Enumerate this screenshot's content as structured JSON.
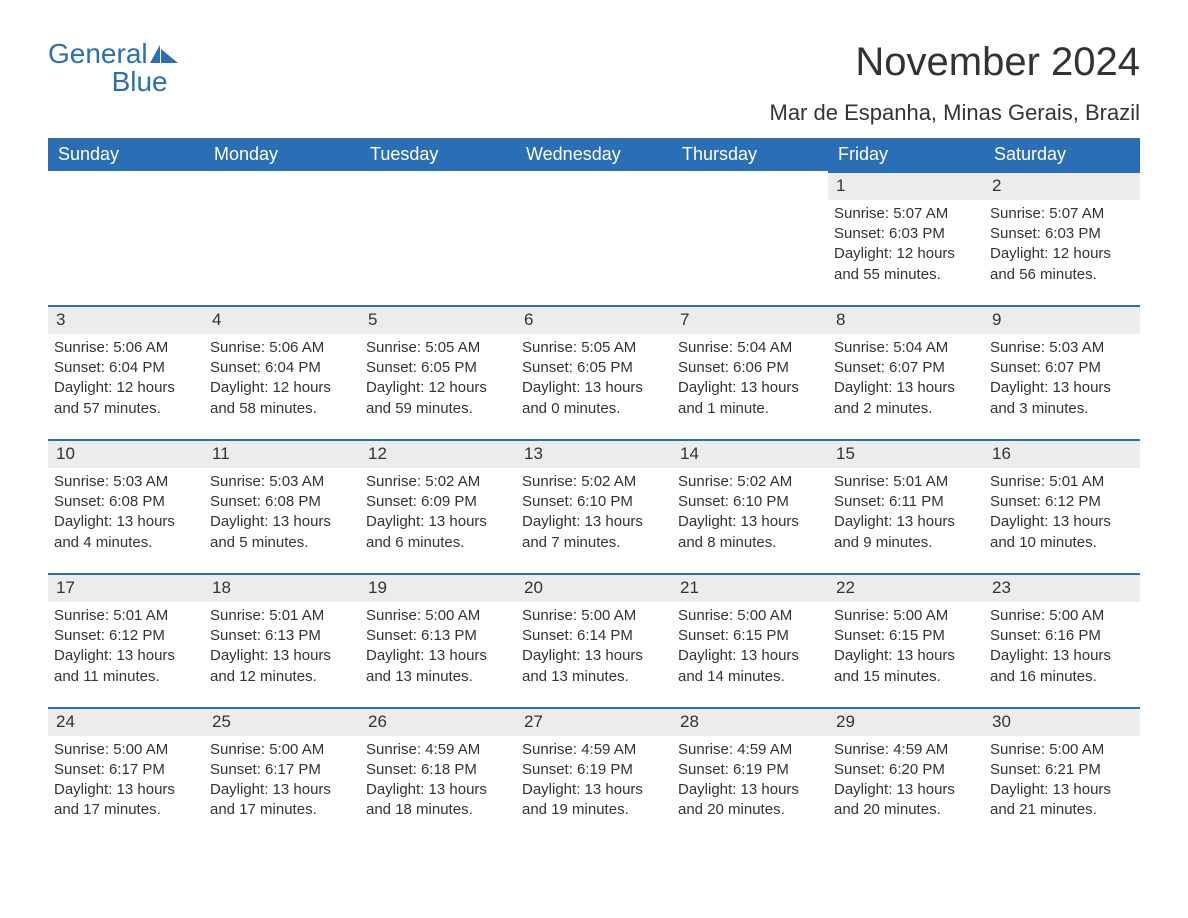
{
  "logo": {
    "text1": "General",
    "text2": "Blue"
  },
  "title": "November 2024",
  "location": "Mar de Espanha, Minas Gerais, Brazil",
  "colors": {
    "headerBg": "#2a6eb6",
    "headerText": "#ffffff",
    "dayBarBg": "#ececec",
    "dayBarBorder": "#2a6eb6",
    "bodyText": "#333333",
    "pageBg": "#ffffff"
  },
  "typography": {
    "title_fontsize": 40,
    "location_fontsize": 22,
    "weekday_fontsize": 18,
    "daynum_fontsize": 17,
    "body_fontsize": 15
  },
  "weekdays": [
    "Sunday",
    "Monday",
    "Tuesday",
    "Wednesday",
    "Thursday",
    "Friday",
    "Saturday"
  ],
  "weeks": [
    [
      {
        "day": "",
        "sunrise": "",
        "sunset": "",
        "daylight": "",
        "empty": true
      },
      {
        "day": "",
        "sunrise": "",
        "sunset": "",
        "daylight": "",
        "empty": true
      },
      {
        "day": "",
        "sunrise": "",
        "sunset": "",
        "daylight": "",
        "empty": true
      },
      {
        "day": "",
        "sunrise": "",
        "sunset": "",
        "daylight": "",
        "empty": true
      },
      {
        "day": "",
        "sunrise": "",
        "sunset": "",
        "daylight": "",
        "empty": true
      },
      {
        "day": "1",
        "sunrise": "Sunrise: 5:07 AM",
        "sunset": "Sunset: 6:03 PM",
        "daylight": "Daylight: 12 hours and 55 minutes."
      },
      {
        "day": "2",
        "sunrise": "Sunrise: 5:07 AM",
        "sunset": "Sunset: 6:03 PM",
        "daylight": "Daylight: 12 hours and 56 minutes."
      }
    ],
    [
      {
        "day": "3",
        "sunrise": "Sunrise: 5:06 AM",
        "sunset": "Sunset: 6:04 PM",
        "daylight": "Daylight: 12 hours and 57 minutes."
      },
      {
        "day": "4",
        "sunrise": "Sunrise: 5:06 AM",
        "sunset": "Sunset: 6:04 PM",
        "daylight": "Daylight: 12 hours and 58 minutes."
      },
      {
        "day": "5",
        "sunrise": "Sunrise: 5:05 AM",
        "sunset": "Sunset: 6:05 PM",
        "daylight": "Daylight: 12 hours and 59 minutes."
      },
      {
        "day": "6",
        "sunrise": "Sunrise: 5:05 AM",
        "sunset": "Sunset: 6:05 PM",
        "daylight": "Daylight: 13 hours and 0 minutes."
      },
      {
        "day": "7",
        "sunrise": "Sunrise: 5:04 AM",
        "sunset": "Sunset: 6:06 PM",
        "daylight": "Daylight: 13 hours and 1 minute."
      },
      {
        "day": "8",
        "sunrise": "Sunrise: 5:04 AM",
        "sunset": "Sunset: 6:07 PM",
        "daylight": "Daylight: 13 hours and 2 minutes."
      },
      {
        "day": "9",
        "sunrise": "Sunrise: 5:03 AM",
        "sunset": "Sunset: 6:07 PM",
        "daylight": "Daylight: 13 hours and 3 minutes."
      }
    ],
    [
      {
        "day": "10",
        "sunrise": "Sunrise: 5:03 AM",
        "sunset": "Sunset: 6:08 PM",
        "daylight": "Daylight: 13 hours and 4 minutes."
      },
      {
        "day": "11",
        "sunrise": "Sunrise: 5:03 AM",
        "sunset": "Sunset: 6:08 PM",
        "daylight": "Daylight: 13 hours and 5 minutes."
      },
      {
        "day": "12",
        "sunrise": "Sunrise: 5:02 AM",
        "sunset": "Sunset: 6:09 PM",
        "daylight": "Daylight: 13 hours and 6 minutes."
      },
      {
        "day": "13",
        "sunrise": "Sunrise: 5:02 AM",
        "sunset": "Sunset: 6:10 PM",
        "daylight": "Daylight: 13 hours and 7 minutes."
      },
      {
        "day": "14",
        "sunrise": "Sunrise: 5:02 AM",
        "sunset": "Sunset: 6:10 PM",
        "daylight": "Daylight: 13 hours and 8 minutes."
      },
      {
        "day": "15",
        "sunrise": "Sunrise: 5:01 AM",
        "sunset": "Sunset: 6:11 PM",
        "daylight": "Daylight: 13 hours and 9 minutes."
      },
      {
        "day": "16",
        "sunrise": "Sunrise: 5:01 AM",
        "sunset": "Sunset: 6:12 PM",
        "daylight": "Daylight: 13 hours and 10 minutes."
      }
    ],
    [
      {
        "day": "17",
        "sunrise": "Sunrise: 5:01 AM",
        "sunset": "Sunset: 6:12 PM",
        "daylight": "Daylight: 13 hours and 11 minutes."
      },
      {
        "day": "18",
        "sunrise": "Sunrise: 5:01 AM",
        "sunset": "Sunset: 6:13 PM",
        "daylight": "Daylight: 13 hours and 12 minutes."
      },
      {
        "day": "19",
        "sunrise": "Sunrise: 5:00 AM",
        "sunset": "Sunset: 6:13 PM",
        "daylight": "Daylight: 13 hours and 13 minutes."
      },
      {
        "day": "20",
        "sunrise": "Sunrise: 5:00 AM",
        "sunset": "Sunset: 6:14 PM",
        "daylight": "Daylight: 13 hours and 13 minutes."
      },
      {
        "day": "21",
        "sunrise": "Sunrise: 5:00 AM",
        "sunset": "Sunset: 6:15 PM",
        "daylight": "Daylight: 13 hours and 14 minutes."
      },
      {
        "day": "22",
        "sunrise": "Sunrise: 5:00 AM",
        "sunset": "Sunset: 6:15 PM",
        "daylight": "Daylight: 13 hours and 15 minutes."
      },
      {
        "day": "23",
        "sunrise": "Sunrise: 5:00 AM",
        "sunset": "Sunset: 6:16 PM",
        "daylight": "Daylight: 13 hours and 16 minutes."
      }
    ],
    [
      {
        "day": "24",
        "sunrise": "Sunrise: 5:00 AM",
        "sunset": "Sunset: 6:17 PM",
        "daylight": "Daylight: 13 hours and 17 minutes."
      },
      {
        "day": "25",
        "sunrise": "Sunrise: 5:00 AM",
        "sunset": "Sunset: 6:17 PM",
        "daylight": "Daylight: 13 hours and 17 minutes."
      },
      {
        "day": "26",
        "sunrise": "Sunrise: 4:59 AM",
        "sunset": "Sunset: 6:18 PM",
        "daylight": "Daylight: 13 hours and 18 minutes."
      },
      {
        "day": "27",
        "sunrise": "Sunrise: 4:59 AM",
        "sunset": "Sunset: 6:19 PM",
        "daylight": "Daylight: 13 hours and 19 minutes."
      },
      {
        "day": "28",
        "sunrise": "Sunrise: 4:59 AM",
        "sunset": "Sunset: 6:19 PM",
        "daylight": "Daylight: 13 hours and 20 minutes."
      },
      {
        "day": "29",
        "sunrise": "Sunrise: 4:59 AM",
        "sunset": "Sunset: 6:20 PM",
        "daylight": "Daylight: 13 hours and 20 minutes."
      },
      {
        "day": "30",
        "sunrise": "Sunrise: 5:00 AM",
        "sunset": "Sunset: 6:21 PM",
        "daylight": "Daylight: 13 hours and 21 minutes."
      }
    ]
  ]
}
